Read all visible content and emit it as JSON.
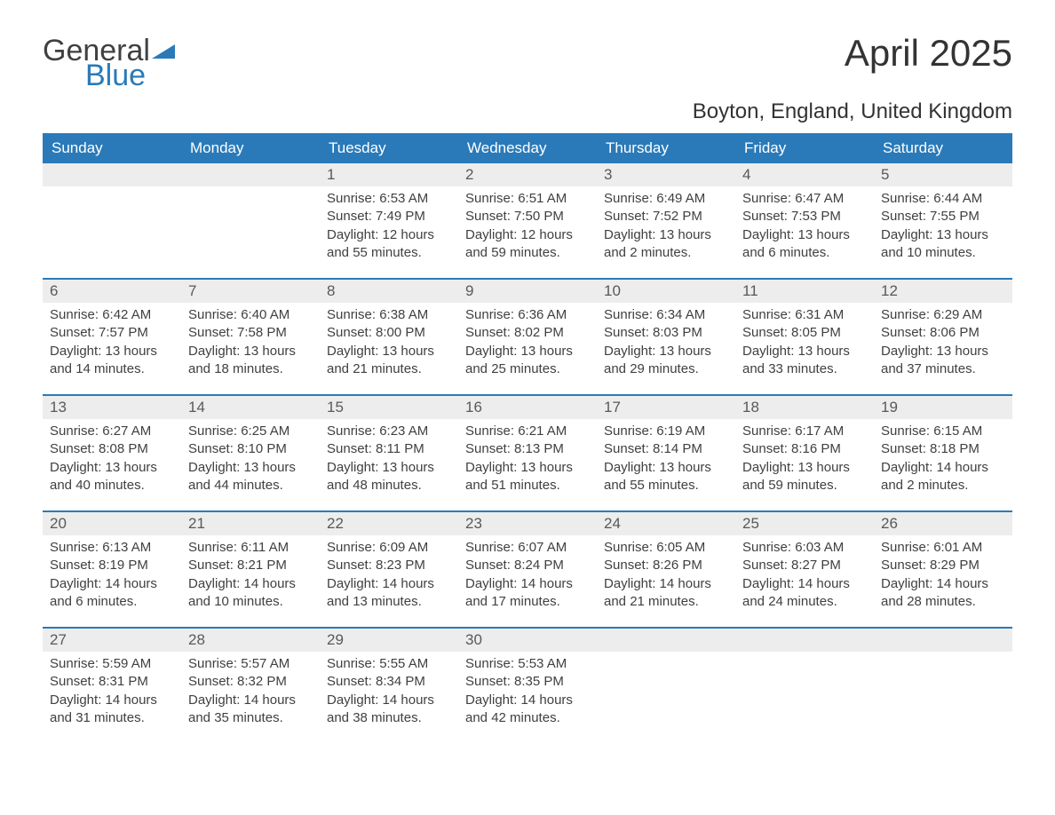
{
  "brand": {
    "text1": "General",
    "text2": "Blue",
    "text1_color": "#404040",
    "text2_color": "#2a7ab9",
    "mark_color": "#2a7ab9"
  },
  "title": "April 2025",
  "location": "Boyton, England, United Kingdom",
  "colors": {
    "header_bg": "#2a7ab9",
    "header_text": "#ffffff",
    "daynum_bg": "#ededed",
    "daynum_text": "#595959",
    "body_text": "#404040",
    "week_divider": "#2a7ab9",
    "page_bg": "#ffffff"
  },
  "typography": {
    "title_fontsize": 42,
    "location_fontsize": 24,
    "weekday_fontsize": 17,
    "daynum_fontsize": 17,
    "body_fontsize": 15,
    "font_family": "Arial"
  },
  "layout": {
    "columns": 7,
    "rows": 5,
    "first_weekday": "Sunday"
  },
  "weekdays": [
    "Sunday",
    "Monday",
    "Tuesday",
    "Wednesday",
    "Thursday",
    "Friday",
    "Saturday"
  ],
  "weeks": [
    [
      {
        "day": "",
        "sunrise": "",
        "sunset": "",
        "daylight": ""
      },
      {
        "day": "",
        "sunrise": "",
        "sunset": "",
        "daylight": ""
      },
      {
        "day": "1",
        "sunrise": "Sunrise: 6:53 AM",
        "sunset": "Sunset: 7:49 PM",
        "daylight": "Daylight: 12 hours and 55 minutes."
      },
      {
        "day": "2",
        "sunrise": "Sunrise: 6:51 AM",
        "sunset": "Sunset: 7:50 PM",
        "daylight": "Daylight: 12 hours and 59 minutes."
      },
      {
        "day": "3",
        "sunrise": "Sunrise: 6:49 AM",
        "sunset": "Sunset: 7:52 PM",
        "daylight": "Daylight: 13 hours and 2 minutes."
      },
      {
        "day": "4",
        "sunrise": "Sunrise: 6:47 AM",
        "sunset": "Sunset: 7:53 PM",
        "daylight": "Daylight: 13 hours and 6 minutes."
      },
      {
        "day": "5",
        "sunrise": "Sunrise: 6:44 AM",
        "sunset": "Sunset: 7:55 PM",
        "daylight": "Daylight: 13 hours and 10 minutes."
      }
    ],
    [
      {
        "day": "6",
        "sunrise": "Sunrise: 6:42 AM",
        "sunset": "Sunset: 7:57 PM",
        "daylight": "Daylight: 13 hours and 14 minutes."
      },
      {
        "day": "7",
        "sunrise": "Sunrise: 6:40 AM",
        "sunset": "Sunset: 7:58 PM",
        "daylight": "Daylight: 13 hours and 18 minutes."
      },
      {
        "day": "8",
        "sunrise": "Sunrise: 6:38 AM",
        "sunset": "Sunset: 8:00 PM",
        "daylight": "Daylight: 13 hours and 21 minutes."
      },
      {
        "day": "9",
        "sunrise": "Sunrise: 6:36 AM",
        "sunset": "Sunset: 8:02 PM",
        "daylight": "Daylight: 13 hours and 25 minutes."
      },
      {
        "day": "10",
        "sunrise": "Sunrise: 6:34 AM",
        "sunset": "Sunset: 8:03 PM",
        "daylight": "Daylight: 13 hours and 29 minutes."
      },
      {
        "day": "11",
        "sunrise": "Sunrise: 6:31 AM",
        "sunset": "Sunset: 8:05 PM",
        "daylight": "Daylight: 13 hours and 33 minutes."
      },
      {
        "day": "12",
        "sunrise": "Sunrise: 6:29 AM",
        "sunset": "Sunset: 8:06 PM",
        "daylight": "Daylight: 13 hours and 37 minutes."
      }
    ],
    [
      {
        "day": "13",
        "sunrise": "Sunrise: 6:27 AM",
        "sunset": "Sunset: 8:08 PM",
        "daylight": "Daylight: 13 hours and 40 minutes."
      },
      {
        "day": "14",
        "sunrise": "Sunrise: 6:25 AM",
        "sunset": "Sunset: 8:10 PM",
        "daylight": "Daylight: 13 hours and 44 minutes."
      },
      {
        "day": "15",
        "sunrise": "Sunrise: 6:23 AM",
        "sunset": "Sunset: 8:11 PM",
        "daylight": "Daylight: 13 hours and 48 minutes."
      },
      {
        "day": "16",
        "sunrise": "Sunrise: 6:21 AM",
        "sunset": "Sunset: 8:13 PM",
        "daylight": "Daylight: 13 hours and 51 minutes."
      },
      {
        "day": "17",
        "sunrise": "Sunrise: 6:19 AM",
        "sunset": "Sunset: 8:14 PM",
        "daylight": "Daylight: 13 hours and 55 minutes."
      },
      {
        "day": "18",
        "sunrise": "Sunrise: 6:17 AM",
        "sunset": "Sunset: 8:16 PM",
        "daylight": "Daylight: 13 hours and 59 minutes."
      },
      {
        "day": "19",
        "sunrise": "Sunrise: 6:15 AM",
        "sunset": "Sunset: 8:18 PM",
        "daylight": "Daylight: 14 hours and 2 minutes."
      }
    ],
    [
      {
        "day": "20",
        "sunrise": "Sunrise: 6:13 AM",
        "sunset": "Sunset: 8:19 PM",
        "daylight": "Daylight: 14 hours and 6 minutes."
      },
      {
        "day": "21",
        "sunrise": "Sunrise: 6:11 AM",
        "sunset": "Sunset: 8:21 PM",
        "daylight": "Daylight: 14 hours and 10 minutes."
      },
      {
        "day": "22",
        "sunrise": "Sunrise: 6:09 AM",
        "sunset": "Sunset: 8:23 PM",
        "daylight": "Daylight: 14 hours and 13 minutes."
      },
      {
        "day": "23",
        "sunrise": "Sunrise: 6:07 AM",
        "sunset": "Sunset: 8:24 PM",
        "daylight": "Daylight: 14 hours and 17 minutes."
      },
      {
        "day": "24",
        "sunrise": "Sunrise: 6:05 AM",
        "sunset": "Sunset: 8:26 PM",
        "daylight": "Daylight: 14 hours and 21 minutes."
      },
      {
        "day": "25",
        "sunrise": "Sunrise: 6:03 AM",
        "sunset": "Sunset: 8:27 PM",
        "daylight": "Daylight: 14 hours and 24 minutes."
      },
      {
        "day": "26",
        "sunrise": "Sunrise: 6:01 AM",
        "sunset": "Sunset: 8:29 PM",
        "daylight": "Daylight: 14 hours and 28 minutes."
      }
    ],
    [
      {
        "day": "27",
        "sunrise": "Sunrise: 5:59 AM",
        "sunset": "Sunset: 8:31 PM",
        "daylight": "Daylight: 14 hours and 31 minutes."
      },
      {
        "day": "28",
        "sunrise": "Sunrise: 5:57 AM",
        "sunset": "Sunset: 8:32 PM",
        "daylight": "Daylight: 14 hours and 35 minutes."
      },
      {
        "day": "29",
        "sunrise": "Sunrise: 5:55 AM",
        "sunset": "Sunset: 8:34 PM",
        "daylight": "Daylight: 14 hours and 38 minutes."
      },
      {
        "day": "30",
        "sunrise": "Sunrise: 5:53 AM",
        "sunset": "Sunset: 8:35 PM",
        "daylight": "Daylight: 14 hours and 42 minutes."
      },
      {
        "day": "",
        "sunrise": "",
        "sunset": "",
        "daylight": ""
      },
      {
        "day": "",
        "sunrise": "",
        "sunset": "",
        "daylight": ""
      },
      {
        "day": "",
        "sunrise": "",
        "sunset": "",
        "daylight": ""
      }
    ]
  ]
}
